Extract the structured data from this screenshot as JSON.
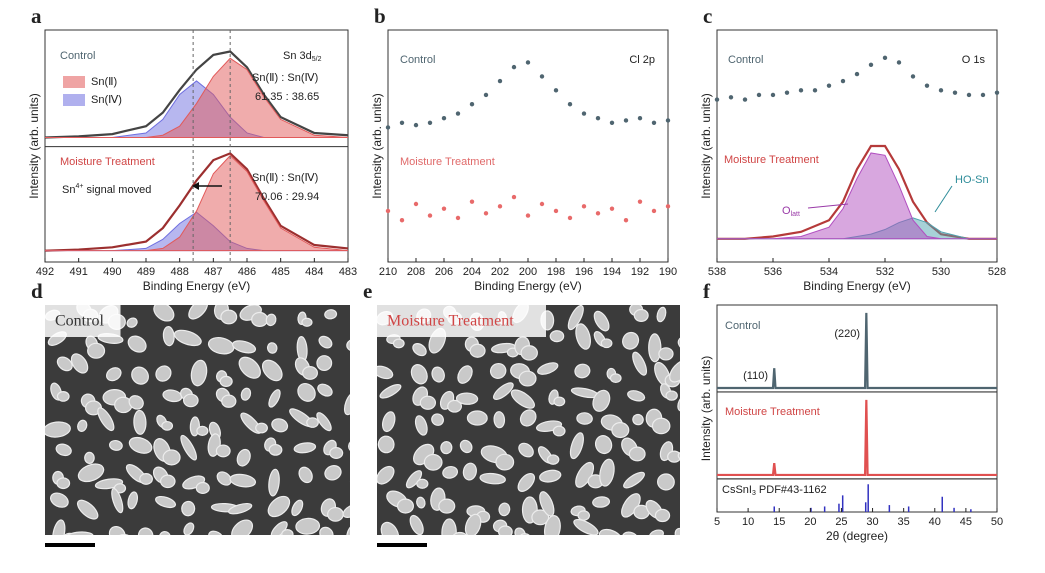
{
  "chart_data": [
    {
      "type": "line",
      "panel_label": "a",
      "xlabel": "Binding Energy (eV)",
      "ylabel": "Intensity (arb. units)",
      "xlim": [
        492,
        483
      ],
      "xticks": [
        492,
        491,
        490,
        489,
        488,
        487,
        486,
        485,
        484,
        483
      ],
      "ylim": [
        0,
        2.05
      ],
      "x": [
        492,
        491,
        490,
        489,
        488.5,
        488,
        487.5,
        487,
        486.5,
        486,
        485.5,
        485,
        484,
        483
      ],
      "vlines": [
        487.6,
        486.5
      ],
      "series": [
        {
          "name": "Sn(Ⅱ)",
          "color": "#e25a5a",
          "style": "area",
          "values": [
            1.1,
            1.1,
            1.1,
            1.1,
            1.12,
            1.2,
            1.4,
            1.64,
            1.8,
            1.7,
            1.46,
            1.26,
            1.12,
            1.1
          ]
        },
        {
          "name": "Sn(Ⅳ)",
          "color": "#6f6fe0",
          "style": "area",
          "values": [
            1.1,
            1.1,
            1.1,
            1.14,
            1.26,
            1.48,
            1.6,
            1.48,
            1.28,
            1.14,
            1.1,
            1.1,
            1.1,
            1.1
          ]
        },
        {
          "color": "#444444",
          "style": "line",
          "values": [
            1.1,
            1.11,
            1.13,
            1.2,
            1.32,
            1.52,
            1.7,
            1.83,
            1.86,
            1.72,
            1.48,
            1.28,
            1.14,
            1.12
          ]
        },
        {
          "color": "#e25a5a",
          "style": "area",
          "values": [
            0.1,
            0.1,
            0.1,
            0.1,
            0.12,
            0.22,
            0.45,
            0.78,
            0.94,
            0.8,
            0.54,
            0.3,
            0.13,
            0.1
          ]
        },
        {
          "color": "#6f6fe0",
          "style": "area",
          "values": [
            0.1,
            0.1,
            0.1,
            0.12,
            0.2,
            0.34,
            0.44,
            0.32,
            0.18,
            0.12,
            0.1,
            0.1,
            0.1,
            0.1
          ]
        },
        {
          "color": "#9c2f2f",
          "style": "line",
          "values": [
            0.1,
            0.11,
            0.13,
            0.18,
            0.3,
            0.5,
            0.72,
            0.9,
            0.96,
            0.82,
            0.56,
            0.32,
            0.15,
            0.12
          ]
        }
      ],
      "annotations": {
        "control": "Control",
        "core_level": {
          "text": "Sn 3d",
          "sub": "5/2"
        },
        "ratio_label_control": "Sn(Ⅱ) : Sn(Ⅳ)",
        "ratio_control": "61.35 : 38.65",
        "treated": "Moisture Treatment",
        "ratio_label_treated": "Sn(Ⅱ) : Sn(Ⅳ)",
        "ratio_treated": "70.06 : 29.94",
        "shift": {
          "text": "Sn",
          "sup": "4+",
          "rest": " signal moved"
        }
      }
    },
    {
      "type": "scatter",
      "panel_label": "b",
      "xlabel": "Binding Energy (eV)",
      "ylabel": "Intensity (arb. units)",
      "xlim": [
        210,
        190
      ],
      "xticks": [
        210,
        208,
        206,
        204,
        202,
        200,
        198,
        196,
        194,
        192,
        190
      ],
      "ylim": [
        0,
        1
      ],
      "x": [
        210,
        209,
        208,
        207,
        206,
        205,
        204,
        203,
        202,
        201,
        200,
        199,
        198,
        197,
        196,
        195,
        194,
        193,
        192,
        191,
        190
      ],
      "series": [
        {
          "color": "#4f6570",
          "style": "markers",
          "values": [
            0.58,
            0.6,
            0.59,
            0.6,
            0.62,
            0.64,
            0.68,
            0.72,
            0.78,
            0.84,
            0.86,
            0.8,
            0.74,
            0.68,
            0.64,
            0.62,
            0.6,
            0.61,
            0.62,
            0.6,
            0.61
          ]
        },
        {
          "color": "#e86a6a",
          "style": "markers",
          "values": [
            0.22,
            0.18,
            0.25,
            0.2,
            0.23,
            0.19,
            0.26,
            0.21,
            0.24,
            0.28,
            0.2,
            0.25,
            0.22,
            0.19,
            0.24,
            0.21,
            0.23,
            0.18,
            0.26,
            0.22,
            0.24
          ]
        }
      ],
      "annotations": {
        "control": "Control",
        "core_level": "Cl 2p",
        "treated": "Moisture Treatment"
      }
    },
    {
      "type": "line",
      "panel_label": "c",
      "xlabel": "Binding Energy (eV)",
      "ylabel": "Intensity (arb. units)",
      "xlim": [
        538,
        528
      ],
      "xticks": [
        538,
        536,
        534,
        532,
        530,
        528
      ],
      "ylim": [
        0,
        1
      ],
      "series": [
        {
          "color": "#4f6570",
          "style": "markers",
          "x": [
            538,
            537.5,
            537,
            536.5,
            536,
            535.5,
            535,
            534.5,
            534,
            533.5,
            533,
            532.5,
            532,
            531.5,
            531,
            530.5,
            530,
            529.5,
            529,
            528.5,
            528
          ],
          "values": [
            0.7,
            0.71,
            0.7,
            0.72,
            0.72,
            0.73,
            0.74,
            0.74,
            0.76,
            0.78,
            0.81,
            0.85,
            0.88,
            0.86,
            0.8,
            0.76,
            0.74,
            0.73,
            0.72,
            0.72,
            0.73
          ]
        },
        {
          "color": "#b14fc0",
          "style": "area",
          "x": [
            538,
            537,
            536,
            535,
            534,
            533.5,
            533,
            532.5,
            532,
            531.5,
            531,
            530.5,
            530,
            529,
            528
          ],
          "values": [
            0.1,
            0.1,
            0.1,
            0.11,
            0.15,
            0.23,
            0.36,
            0.47,
            0.46,
            0.33,
            0.18,
            0.11,
            0.1,
            0.1,
            0.1
          ]
        },
        {
          "color": "#4fa3b0",
          "style": "area",
          "x": [
            538,
            537,
            536,
            535,
            534,
            533.5,
            533,
            532.5,
            532,
            531.5,
            531,
            530.5,
            530,
            529,
            528
          ],
          "values": [
            0.1,
            0.1,
            0.1,
            0.1,
            0.1,
            0.1,
            0.11,
            0.12,
            0.14,
            0.17,
            0.19,
            0.17,
            0.13,
            0.1,
            0.1
          ]
        },
        {
          "color": "#b53a3a",
          "style": "line",
          "x": [
            538,
            537,
            536,
            535,
            534,
            533.5,
            533,
            532.5,
            532,
            531.5,
            531,
            530.5,
            530,
            529,
            528
          ],
          "values": [
            0.1,
            0.1,
            0.11,
            0.13,
            0.18,
            0.26,
            0.4,
            0.5,
            0.5,
            0.4,
            0.26,
            0.17,
            0.12,
            0.1,
            0.1
          ]
        }
      ],
      "annotations": {
        "control": "Control",
        "core_level": "O 1s",
        "treated": "Moisture Treatment",
        "lattice": {
          "text": "O",
          "sub": "latt"
        },
        "hydroxyl": "HO-Sn"
      }
    },
    {
      "type": "image",
      "panel_label": "d",
      "label": "Control",
      "label_color": "#333333"
    },
    {
      "type": "image",
      "panel_label": "e",
      "label": "Moisture Treatment",
      "label_color": "#d04545"
    },
    {
      "type": "stacked",
      "panel_label": "f",
      "xlabel": "2θ (degree)",
      "ylabel": "Intensity (arb. units)",
      "xlim": [
        5,
        50
      ],
      "xticks": [
        5,
        10,
        15,
        20,
        25,
        30,
        35,
        40,
        45,
        50
      ],
      "series": [
        {
          "color": "#4f6570",
          "style": "line",
          "ylim": [
            0,
            1.05
          ],
          "x": [
            5,
            14,
            14.2,
            14.4,
            28.8,
            29,
            29.2,
            50
          ],
          "values": [
            0.05,
            0.05,
            0.3,
            0.05,
            0.05,
            1,
            0.05,
            0.05
          ]
        },
        {
          "color": "#e05050",
          "style": "line",
          "ylim": [
            0,
            1.05
          ],
          "x": [
            5,
            14,
            14.2,
            14.4,
            28.8,
            29,
            29.2,
            50
          ],
          "values": [
            0.05,
            0.05,
            0.2,
            0.05,
            0.05,
            1,
            0.05,
            0.05
          ]
        },
        {
          "color": "#3232c0",
          "style": "sticks",
          "ylim": [
            0,
            1.05
          ],
          "x": [
            14.2,
            20.1,
            22.3,
            24.6,
            25.2,
            28.9,
            29.3,
            32.7,
            35.8,
            41.2,
            43.1,
            45.8
          ],
          "values": [
            0.2,
            0.15,
            0.2,
            0.3,
            0.6,
            0.35,
            1,
            0.25,
            0.2,
            0.55,
            0.15,
            0.1
          ]
        }
      ],
      "annotations": {
        "control": "Control",
        "peak_220": "(220)",
        "peak_110": "(110)",
        "treated": "Moisture Treatment",
        "reference": {
          "text": "CsSnI",
          "sub": "3",
          "rest": " PDF#43-1162"
        }
      }
    }
  ]
}
